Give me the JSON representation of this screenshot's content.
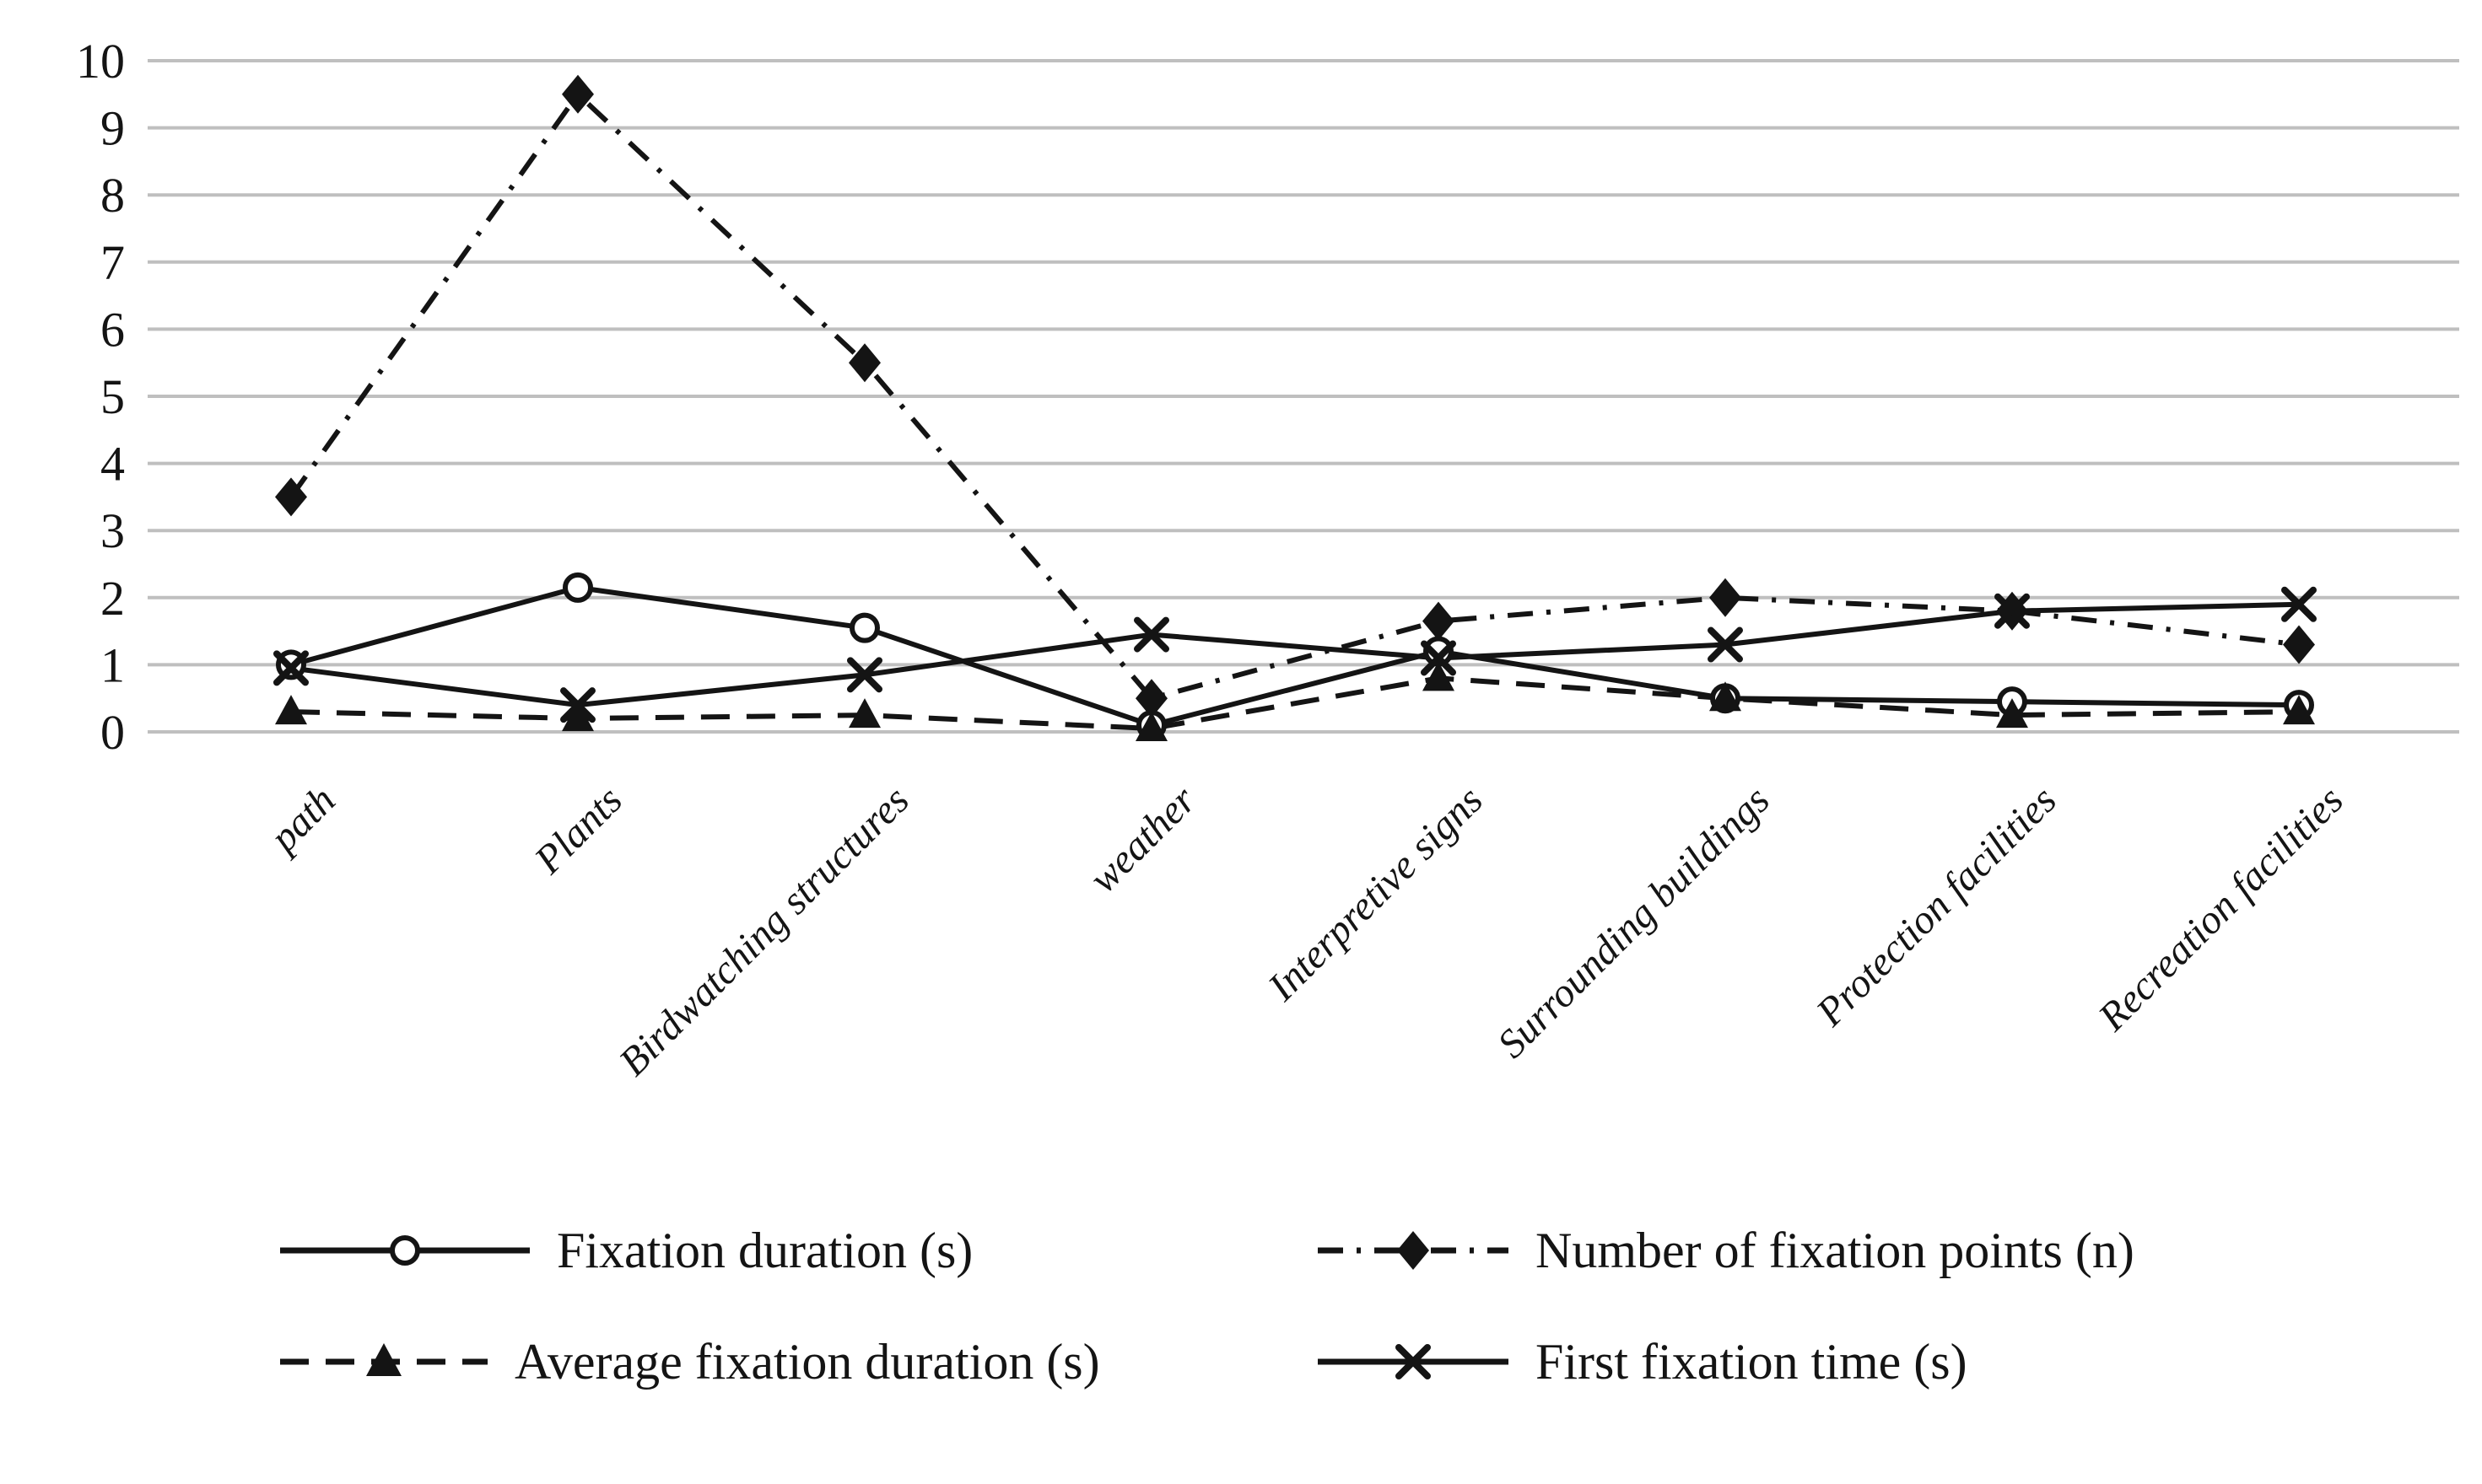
{
  "colors": {
    "ink": "#141414",
    "grid": "#bfbfbf",
    "background": "#ffffff"
  },
  "chart_data": {
    "type": "line",
    "title": "",
    "xlabel": "",
    "ylabel": "",
    "ylim": [
      0,
      10
    ],
    "yticks": [
      0,
      1,
      2,
      3,
      4,
      5,
      6,
      7,
      8,
      9,
      10
    ],
    "grid": "horizontal",
    "legend_position": "bottom",
    "categories": [
      "path",
      "Plants",
      "Birdwatching structures",
      "weather",
      "Interpretive signs",
      "Surrounding buildings",
      "Protection facilities",
      "Recreation facilities"
    ],
    "series": [
      {
        "id": "fixation-duration",
        "name": "Fixation duration (s)",
        "line": "solid",
        "marker": "circle-open",
        "values": [
          1.0,
          2.15,
          1.55,
          0.1,
          1.2,
          0.5,
          0.45,
          0.4
        ]
      },
      {
        "id": "number-of-fixation-points",
        "name": "Number of fixation points (n)",
        "line": "dashdot",
        "marker": "diamond",
        "values": [
          3.5,
          9.5,
          5.5,
          0.5,
          1.65,
          2.0,
          1.8,
          1.3
        ]
      },
      {
        "id": "average-fixation-duration",
        "name": "Average fixation duration (s)",
        "line": "dashed",
        "marker": "triangle",
        "values": [
          0.3,
          0.2,
          0.25,
          0.05,
          0.8,
          0.5,
          0.25,
          0.3
        ]
      },
      {
        "id": "first-fixation-time",
        "name": "First fixation time (s)",
        "line": "solid",
        "marker": "x",
        "values": [
          0.95,
          0.4,
          0.85,
          1.45,
          1.1,
          1.3,
          1.8,
          1.9
        ]
      }
    ]
  }
}
